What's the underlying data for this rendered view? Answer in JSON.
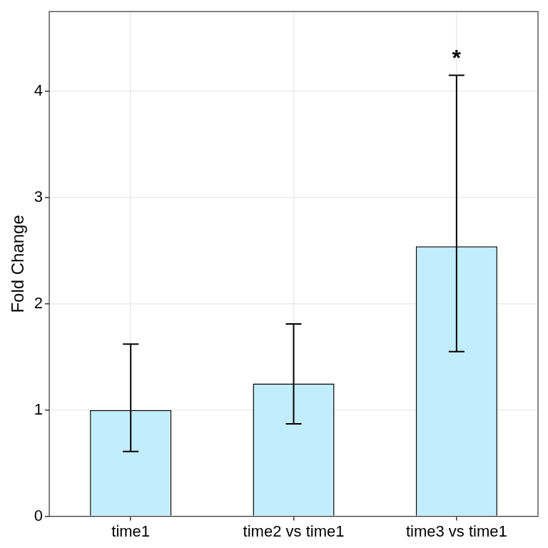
{
  "chart_data": {
    "type": "bar",
    "y_label": "Fold Change",
    "categories": [
      "time1",
      "time2 vs time1",
      "time3 vs time1"
    ],
    "values": [
      1.0,
      1.25,
      2.54
    ],
    "errors": [
      {
        "low": 0.61,
        "high": 1.62
      },
      {
        "low": 0.87,
        "high": 1.81
      },
      {
        "low": 1.55,
        "high": 4.15
      }
    ],
    "annotations": [
      {
        "category": "time3 vs time1",
        "text": "*"
      }
    ],
    "color": "#c2edfc",
    "ylim": [
      0,
      4.75
    ],
    "yticks": [
      0,
      1,
      2,
      3,
      4
    ],
    "grid": true
  }
}
